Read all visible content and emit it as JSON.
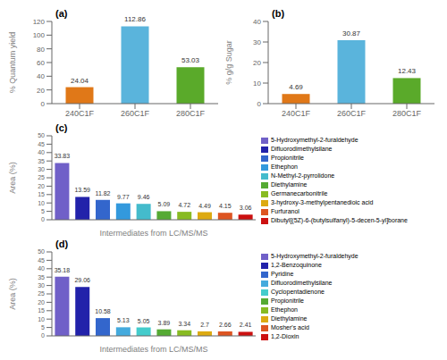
{
  "chart_data": [
    {
      "type": "bar",
      "title": "(a)",
      "categories": [
        "240C1F",
        "260C1F",
        "280C1F"
      ],
      "values": [
        24.04,
        112.86,
        53.03
      ],
      "colors": [
        "#e07818",
        "#5ab4dc",
        "#5aaa2a"
      ],
      "ylabel": "% Quantum yield",
      "ylim": [
        0,
        120
      ],
      "yticks": [
        0,
        20,
        40,
        60,
        80,
        100,
        120
      ],
      "data_labels": true,
      "grid": false
    },
    {
      "type": "bar",
      "title": "(b)",
      "categories": [
        "240C1F",
        "260C1F",
        "280C1F"
      ],
      "values": [
        4.69,
        30.87,
        12.43
      ],
      "colors": [
        "#e07818",
        "#5ab4dc",
        "#5aaa2a"
      ],
      "ylabel": "% g/g Sugar",
      "ylim": [
        0,
        40
      ],
      "yticks": [
        0,
        10,
        20,
        30,
        40
      ],
      "data_labels": true,
      "grid": false
    },
    {
      "type": "bar",
      "title": "(c)",
      "categories": [
        "5-Hydroxymethyl-2-furaldehyde",
        "Difluorodimethylsilane",
        "Propionitrile",
        "Ethephon",
        "N-Methyl-2-pyrrolidone",
        "Diethylamine",
        "Germanecarbonitrile",
        "3-hydroxy-3-methylpentanedioic acid",
        "Furfuranol",
        "Dibutyl[(5Z)-6-(butylsulfanyl)-5-decen-5-yl]borane"
      ],
      "values": [
        33.83,
        13.59,
        11.82,
        9.77,
        9.46,
        5.09,
        4.72,
        4.49,
        4.15,
        3.06
      ],
      "colors": [
        "#7060c8",
        "#2222aa",
        "#3366cc",
        "#3399dd",
        "#44bbcc",
        "#55aa33",
        "#88bb22",
        "#ddaa11",
        "#dd5522",
        "#cc1111"
      ],
      "ylabel": "Area (%)",
      "xlabel": "Intermediates from LC/MS/MS",
      "ylim": [
        0,
        50
      ],
      "yticks": [
        0,
        5,
        10,
        15,
        20,
        25,
        30,
        35,
        40,
        45,
        50
      ],
      "data_labels": true,
      "tick_labels": "y",
      "legend": "right",
      "grid": false
    },
    {
      "type": "bar",
      "title": "(d)",
      "categories": [
        "5-Hydroxymethyl-2-furaldehyde",
        "1,2-Benzoquinone",
        "Pyridine",
        "Difluorodimethylsilane",
        "Cyclopentadienone",
        "Propionitrile",
        "Ethephon",
        "Diethylamine",
        "Mosher's acid",
        "1,2-Dioxin"
      ],
      "values": [
        35.18,
        29.06,
        10.58,
        5.13,
        5.05,
        3.89,
        3.34,
        2.7,
        2.66,
        2.41
      ],
      "colors": [
        "#7060c8",
        "#2222aa",
        "#3366cc",
        "#44aadd",
        "#44cccc",
        "#55aa33",
        "#88bb22",
        "#ddaa11",
        "#dd5522",
        "#cc1111"
      ],
      "ylabel": "Area (%)",
      "xlabel": "Intermediates from LC/MS/MS",
      "ylim": [
        0,
        50
      ],
      "yticks": [
        0,
        5,
        10,
        15,
        20,
        25,
        30,
        35,
        40,
        45,
        50
      ],
      "data_labels": true,
      "tick_labels": "y",
      "legend": "right",
      "grid": false
    }
  ]
}
